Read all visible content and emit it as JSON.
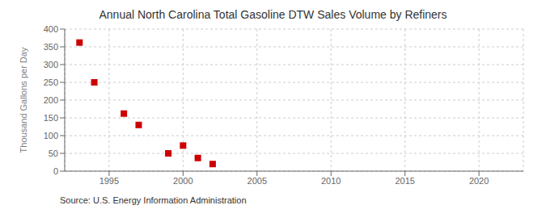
{
  "chart_data": {
    "type": "scatter",
    "title": "Annual North Carolina Total Gasoline DTW Sales Volume by Refiners",
    "y_label": "Thousand Gallons per Day",
    "annotation": "Source: U.S. Energy Information Administration",
    "x": [
      1993,
      1994,
      1996,
      1997,
      1999,
      2000,
      2001,
      2002
    ],
    "values": [
      362,
      250,
      162,
      130,
      50,
      72,
      37,
      20
    ],
    "color": "#cc0000",
    "marker": "square",
    "xlim": [
      1992,
      2023
    ],
    "ylim": [
      0,
      400
    ],
    "xticks": [
      1995,
      2000,
      2005,
      2010,
      2015,
      2020
    ],
    "yticks": [
      0,
      50,
      100,
      150,
      200,
      250,
      300,
      350,
      400
    ],
    "grid": true
  }
}
